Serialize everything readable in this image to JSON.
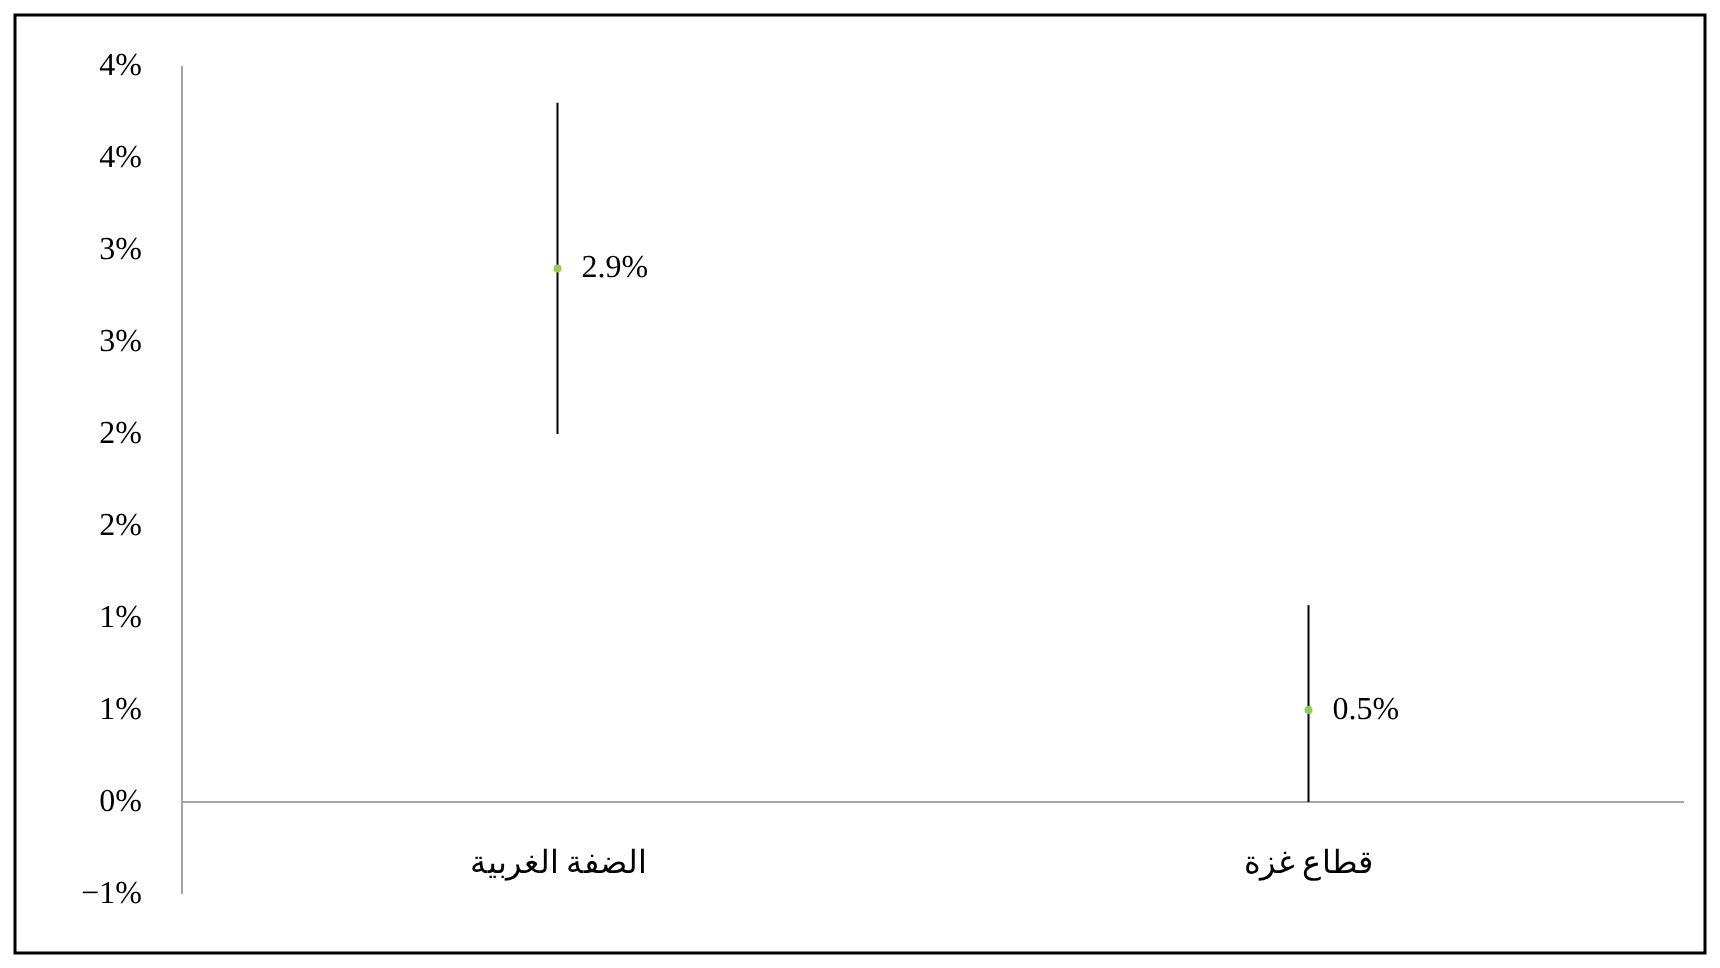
{
  "chart_data": {
    "type": "scatter",
    "categories": [
      "الضفة الغربية",
      "قطاع غزة"
    ],
    "values": [
      2.9,
      0.5
    ],
    "errors": [
      [
        2.0,
        3.8
      ],
      [
        0,
        1.07
      ]
    ],
    "value_labels": [
      "2.9%",
      "0.5%"
    ],
    "color": "#92d050",
    "marker": "circle",
    "ylim": [
      -0.5,
      4.0
    ],
    "yticks": [
      {
        "value": -0.5,
        "label": "−1%"
      },
      {
        "value": 0,
        "label": "0%"
      },
      {
        "value": 0.5,
        "label": "1%"
      },
      {
        "value": 1.0,
        "label": "1%"
      },
      {
        "value": 1.5,
        "label": "2%"
      },
      {
        "value": 2.0,
        "label": "2%"
      },
      {
        "value": 2.5,
        "label": "3%"
      },
      {
        "value": 3.0,
        "label": "3%"
      },
      {
        "value": 3.5,
        "label": "4%"
      },
      {
        "value": 4.0,
        "label": "4%"
      }
    ],
    "grid": false
  }
}
